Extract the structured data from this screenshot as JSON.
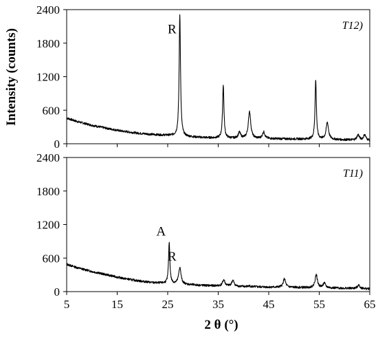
{
  "figure": {
    "ylabel": "Intensity (counts)",
    "xlabel": "2 θ (°)"
  },
  "chart_data": [
    {
      "type": "line",
      "panel_label": "T12)",
      "xlim": [
        5,
        65
      ],
      "ylim": [
        0,
        2400
      ],
      "x_ticks": [
        5,
        15,
        25,
        35,
        45,
        55,
        65
      ],
      "y_ticks": [
        0,
        600,
        1200,
        1800,
        2400
      ],
      "x_tick_labels_visible": false,
      "grid": false,
      "baseline": [
        [
          5,
          460
        ],
        [
          7,
          400
        ],
        [
          10,
          330
        ],
        [
          13,
          275
        ],
        [
          16,
          225
        ],
        [
          19,
          190
        ],
        [
          22,
          165
        ],
        [
          25,
          150
        ],
        [
          28,
          130
        ],
        [
          32,
          110
        ],
        [
          36,
          100
        ],
        [
          40,
          95
        ],
        [
          45,
          90
        ],
        [
          50,
          85
        ],
        [
          55,
          80
        ],
        [
          60,
          70
        ],
        [
          65,
          60
        ]
      ],
      "peaks": [
        {
          "x": 27.4,
          "y": 2320,
          "label": "R"
        },
        {
          "x": 36.0,
          "y": 1060
        },
        {
          "x": 39.2,
          "y": 200
        },
        {
          "x": 41.2,
          "y": 580
        },
        {
          "x": 44.0,
          "y": 210
        },
        {
          "x": 54.3,
          "y": 1140
        },
        {
          "x": 56.6,
          "y": 380
        },
        {
          "x": 62.7,
          "y": 160
        },
        {
          "x": 64.0,
          "y": 160
        }
      ]
    },
    {
      "type": "line",
      "panel_label": "T11)",
      "xlim": [
        5,
        65
      ],
      "ylim": [
        0,
        2400
      ],
      "x_ticks": [
        5,
        15,
        25,
        35,
        45,
        55,
        65
      ],
      "y_ticks": [
        0,
        600,
        1200,
        1800,
        2400
      ],
      "x_tick_labels_visible": true,
      "grid": false,
      "baseline": [
        [
          5,
          490
        ],
        [
          7,
          430
        ],
        [
          10,
          360
        ],
        [
          13,
          300
        ],
        [
          16,
          240
        ],
        [
          19,
          195
        ],
        [
          22,
          160
        ],
        [
          24,
          150
        ],
        [
          28,
          130
        ],
        [
          32,
          110
        ],
        [
          36,
          100
        ],
        [
          40,
          90
        ],
        [
          45,
          80
        ],
        [
          50,
          75
        ],
        [
          55,
          70
        ],
        [
          60,
          60
        ],
        [
          65,
          50
        ]
      ],
      "peaks": [
        {
          "x": 25.3,
          "y": 880,
          "label": "A"
        },
        {
          "x": 27.4,
          "y": 430,
          "label": "R"
        },
        {
          "x": 36.1,
          "y": 210
        },
        {
          "x": 37.9,
          "y": 200
        },
        {
          "x": 41.2,
          "y": 100
        },
        {
          "x": 48.1,
          "y": 230
        },
        {
          "x": 54.4,
          "y": 300
        },
        {
          "x": 56.0,
          "y": 150
        },
        {
          "x": 62.8,
          "y": 120
        }
      ]
    }
  ]
}
